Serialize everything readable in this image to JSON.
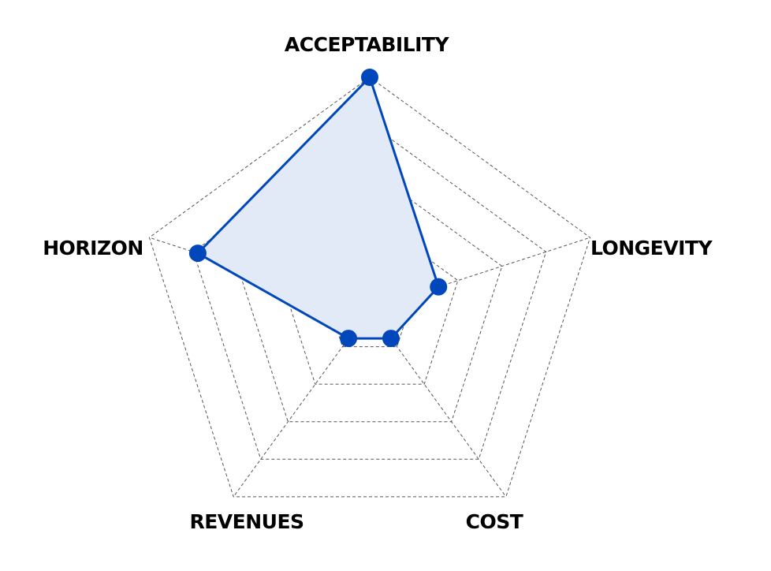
{
  "chart_data": {
    "type": "radar",
    "axes": [
      "ACCEPTABILITY",
      "LONGEVITY",
      "COST",
      "REVENUES",
      "HORIZON"
    ],
    "series": [
      {
        "values": [
          5.0,
          1.56,
          0.78,
          0.78,
          3.9
        ],
        "color": "#0047bb",
        "fill": "#e3eaf7"
      }
    ],
    "range": [
      0,
      5
    ],
    "rings": 5,
    "grid": true,
    "grid_style": "dashed"
  }
}
